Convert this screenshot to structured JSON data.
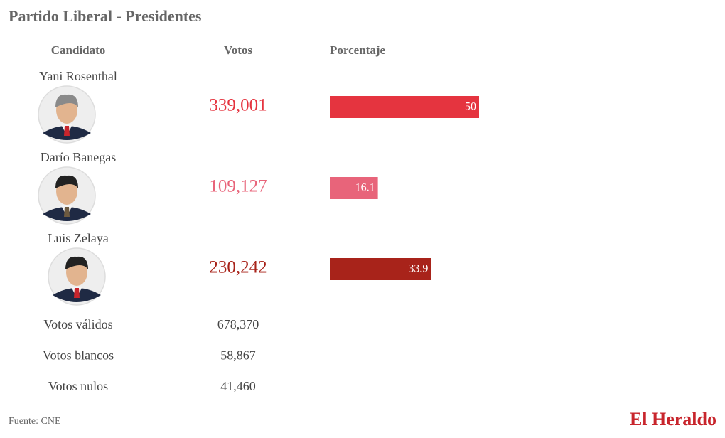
{
  "header": {
    "title": "Partido Liberal - Presidentes"
  },
  "columns": [
    "Candidato",
    "Votos",
    "Porcentaje"
  ],
  "candidates": [
    {
      "name": "Yani Rosenthal",
      "votes": "339,001",
      "percent": 50,
      "color": "#e5343f"
    },
    {
      "name": "Darío Banegas",
      "votes": "109,127",
      "percent": 16.1,
      "color": "#e8647a"
    },
    {
      "name": "Luis Zelaya",
      "votes": "230,242",
      "percent": 33.9,
      "color": "#a8231a"
    }
  ],
  "totals": [
    {
      "label": "Votos válidos",
      "value": "678,370"
    },
    {
      "label": "Votos blancos",
      "value": "58,867"
    },
    {
      "label": "Votos nulos",
      "value": "41,460"
    }
  ],
  "footer": {
    "source": "Fuente: CNE",
    "brand": "El Heraldo"
  }
}
